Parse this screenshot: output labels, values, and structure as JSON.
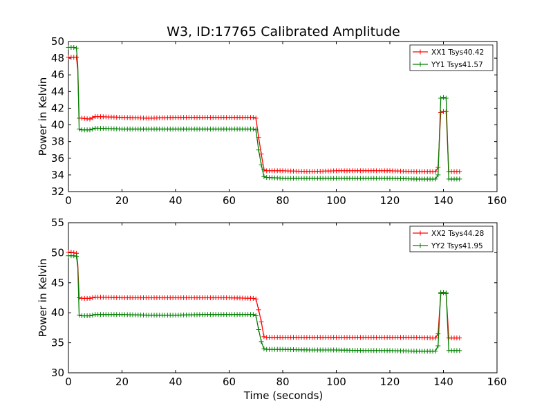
{
  "figure": {
    "title": "W3, ID:17765 Calibrated Amplitude",
    "xlabel": "Time (seconds)"
  },
  "chart_data": [
    {
      "type": "line",
      "title": "W3, ID:17765 Calibrated Amplitude",
      "xlabel": "",
      "ylabel": "Power in Kelvin",
      "xlim": [
        0,
        160
      ],
      "ylim": [
        32,
        50
      ],
      "x_ticks": [
        0,
        20,
        40,
        60,
        80,
        100,
        120,
        140,
        160
      ],
      "y_ticks": [
        32,
        34,
        36,
        38,
        40,
        42,
        44,
        46,
        48,
        50
      ],
      "grid": false,
      "legend_position": "top-right",
      "marker": "+",
      "series": [
        {
          "name": "XX1 Tsys40.42",
          "color": "#ff0000",
          "x": [
            0,
            1,
            2,
            3,
            3.5,
            4,
            5,
            8,
            10,
            20,
            30,
            40,
            50,
            60,
            69,
            70,
            71,
            72,
            73,
            74,
            80,
            90,
            100,
            110,
            120,
            130,
            136,
            137,
            138,
            139,
            140,
            141,
            142,
            146
          ],
          "y": [
            48.1,
            48.1,
            48.1,
            48.1,
            46.5,
            40.8,
            40.8,
            40.7,
            41.0,
            40.9,
            40.8,
            40.9,
            40.9,
            40.9,
            40.9,
            40.8,
            38.5,
            36.5,
            34.6,
            34.5,
            34.5,
            34.4,
            34.5,
            34.5,
            34.5,
            34.4,
            34.4,
            34.4,
            34.9,
            41.5,
            41.6,
            41.6,
            34.4,
            34.4
          ]
        },
        {
          "name": "YY1 Tsys41.57",
          "color": "#008000",
          "x": [
            0,
            1,
            2,
            3,
            3.5,
            4,
            5,
            8,
            10,
            20,
            30,
            40,
            50,
            60,
            69,
            70,
            71,
            72,
            73,
            74,
            80,
            90,
            100,
            110,
            120,
            130,
            136,
            137,
            138,
            139,
            140,
            141,
            142,
            146
          ],
          "y": [
            49.3,
            49.3,
            49.3,
            49.2,
            47.0,
            39.5,
            39.4,
            39.4,
            39.6,
            39.5,
            39.5,
            39.5,
            39.5,
            39.5,
            39.5,
            39.4,
            37.0,
            35.2,
            33.8,
            33.7,
            33.6,
            33.6,
            33.6,
            33.6,
            33.6,
            33.5,
            33.5,
            33.5,
            34.0,
            43.2,
            43.3,
            43.2,
            33.5,
            33.5
          ]
        }
      ]
    },
    {
      "type": "line",
      "title": "",
      "xlabel": "Time (seconds)",
      "ylabel": "Power in Kelvin",
      "xlim": [
        0,
        160
      ],
      "ylim": [
        30,
        55
      ],
      "x_ticks": [
        0,
        20,
        40,
        60,
        80,
        100,
        120,
        140,
        160
      ],
      "y_ticks": [
        30,
        35,
        40,
        45,
        50,
        55
      ],
      "grid": false,
      "legend_position": "top-right",
      "marker": "+",
      "series": [
        {
          "name": "XX2 Tsys44.28",
          "color": "#ff0000",
          "x": [
            0,
            1,
            2,
            3,
            3.5,
            4,
            5,
            8,
            10,
            20,
            30,
            40,
            50,
            60,
            69,
            70,
            71,
            72,
            73,
            74,
            80,
            90,
            100,
            110,
            120,
            130,
            136,
            137,
            138,
            139,
            140,
            141,
            142,
            146
          ],
          "y": [
            50.1,
            50.1,
            50.0,
            49.9,
            48.0,
            42.5,
            42.4,
            42.4,
            42.6,
            42.5,
            42.5,
            42.5,
            42.5,
            42.5,
            42.4,
            42.3,
            40.5,
            38.5,
            36.0,
            35.9,
            35.9,
            35.9,
            35.9,
            35.9,
            35.9,
            35.9,
            35.8,
            35.8,
            36.5,
            43.2,
            43.3,
            43.2,
            35.8,
            35.8
          ]
        },
        {
          "name": "YY2 Tsys41.95",
          "color": "#008000",
          "x": [
            0,
            1,
            2,
            3,
            3.5,
            4,
            5,
            8,
            10,
            20,
            30,
            40,
            50,
            60,
            69,
            70,
            71,
            72,
            73,
            74,
            80,
            90,
            100,
            110,
            120,
            130,
            136,
            137,
            138,
            139,
            140,
            141,
            142,
            146
          ],
          "y": [
            49.5,
            49.5,
            49.5,
            49.4,
            47.5,
            39.6,
            39.5,
            39.5,
            39.7,
            39.7,
            39.6,
            39.6,
            39.7,
            39.7,
            39.7,
            39.5,
            37.2,
            35.2,
            34.0,
            33.9,
            33.9,
            33.8,
            33.8,
            33.7,
            33.7,
            33.6,
            33.6,
            33.6,
            34.5,
            43.4,
            43.4,
            43.3,
            33.7,
            33.7
          ]
        }
      ]
    }
  ]
}
